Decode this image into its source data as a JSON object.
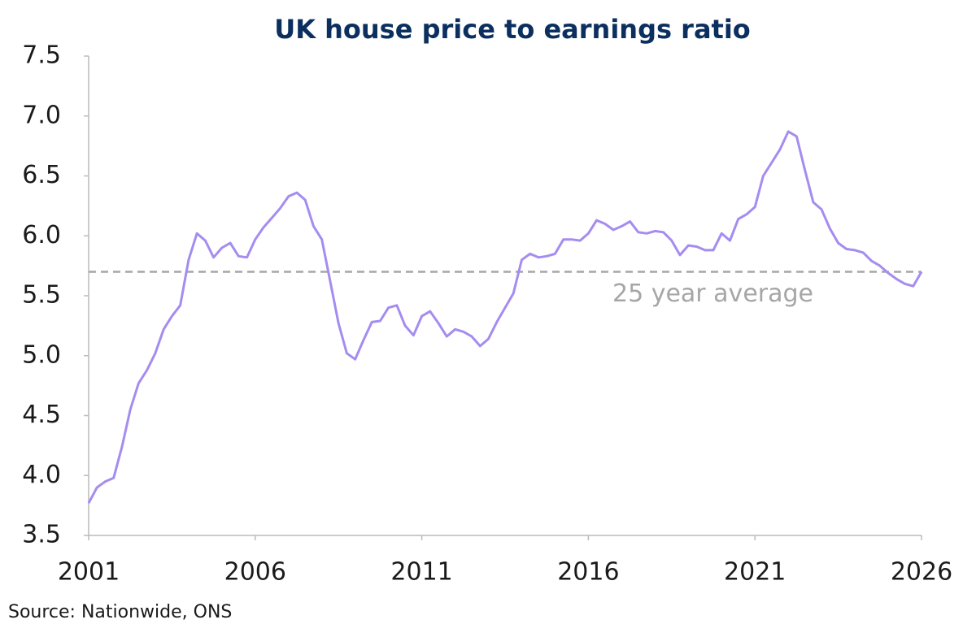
{
  "chart_data": {
    "type": "line",
    "title": "UK house price to earnings ratio",
    "source": "Source: Nationwide, ONS",
    "x": [
      2001,
      2001.25,
      2001.5,
      2001.75,
      2002,
      2002.25,
      2002.5,
      2002.75,
      2003,
      2003.25,
      2003.5,
      2003.75,
      2004,
      2004.25,
      2004.5,
      2004.75,
      2005,
      2005.25,
      2005.5,
      2005.75,
      2006,
      2006.25,
      2006.5,
      2006.75,
      2007,
      2007.25,
      2007.5,
      2007.75,
      2008,
      2008.25,
      2008.5,
      2008.75,
      2009,
      2009.25,
      2009.5,
      2009.75,
      2010,
      2010.25,
      2010.5,
      2010.75,
      2011,
      2011.25,
      2011.5,
      2011.75,
      2012,
      2012.25,
      2012.5,
      2012.75,
      2013,
      2013.25,
      2013.5,
      2013.75,
      2014,
      2014.25,
      2014.5,
      2014.75,
      2015,
      2015.25,
      2015.5,
      2015.75,
      2016,
      2016.25,
      2016.5,
      2016.75,
      2017,
      2017.25,
      2017.5,
      2017.75,
      2018,
      2018.25,
      2018.5,
      2018.75,
      2019,
      2019.25,
      2019.5,
      2019.75,
      2020,
      2020.25,
      2020.5,
      2020.75,
      2021,
      2021.25,
      2021.5,
      2021.75,
      2022,
      2022.25,
      2022.5,
      2022.75,
      2023,
      2023.25,
      2023.5,
      2023.75,
      2024,
      2024.25,
      2024.5,
      2024.75,
      2025,
      2025.25,
      2025.5,
      2025.75,
      2026
    ],
    "series": [
      {
        "color": "#a58cf0",
        "values": [
          3.77,
          3.9,
          3.95,
          3.98,
          4.24,
          4.55,
          4.77,
          4.88,
          5.02,
          5.22,
          5.33,
          5.42,
          5.8,
          6.02,
          5.96,
          5.82,
          5.9,
          5.94,
          5.83,
          5.82,
          5.97,
          6.07,
          6.15,
          6.23,
          6.33,
          6.36,
          6.3,
          6.08,
          5.97,
          5.62,
          5.27,
          5.02,
          4.97,
          5.13,
          5.28,
          5.29,
          5.4,
          5.42,
          5.25,
          5.17,
          5.33,
          5.37,
          5.27,
          5.16,
          5.22,
          5.2,
          5.16,
          5.08,
          5.14,
          5.28,
          5.4,
          5.52,
          5.8,
          5.85,
          5.82,
          5.83,
          5.85,
          5.97,
          5.97,
          5.96,
          6.02,
          6.13,
          6.1,
          6.05,
          6.08,
          6.12,
          6.03,
          6.02,
          6.04,
          6.03,
          5.96,
          5.84,
          5.92,
          5.91,
          5.88,
          5.88,
          6.02,
          5.96,
          6.14,
          6.18,
          6.24,
          6.5,
          6.61,
          6.72,
          6.87,
          6.83,
          6.55,
          6.28,
          6.22,
          6.06,
          5.94,
          5.89,
          5.88,
          5.86,
          5.79,
          5.75,
          5.69,
          5.64,
          5.6,
          5.58,
          5.7
        ]
      }
    ],
    "reference_line": {
      "value": 5.7,
      "label": "25 year average",
      "color": "#a6a6a6"
    },
    "xlim": [
      2001,
      2026
    ],
    "xticks": [
      2001,
      2006,
      2011,
      2016,
      2021,
      2026
    ],
    "ylim": [
      3.5,
      7.5
    ],
    "yticks": [
      3.5,
      {
        "value": 4,
        "label": "4.0"
      },
      4.5,
      {
        "value": 5,
        "label": "5.0"
      },
      5.5,
      {
        "value": 6,
        "label": "6.0"
      },
      6.5,
      {
        "value": 7,
        "label": "7.0"
      },
      7.5
    ]
  }
}
